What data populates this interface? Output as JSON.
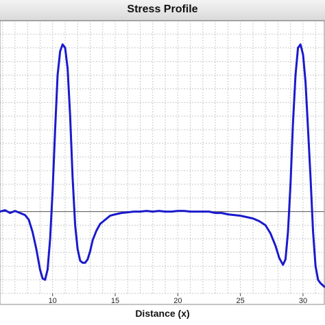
{
  "chart_data": {
    "type": "line",
    "title": "Stress Profile",
    "xlabel": "Distance (x)",
    "ylabel": "",
    "xlim": [
      5.8,
      31.7
    ],
    "ylim": [
      -1.2,
      2.8
    ],
    "x_ticks": [
      10,
      15,
      20,
      25,
      30
    ],
    "grid": true,
    "baseline": 0,
    "colors": {
      "line": "#1a1acc",
      "baseline": "#555555",
      "grid": "#c8c8c8"
    },
    "series": [
      {
        "x": [
          5.8,
          6.2,
          6.6,
          7.0,
          7.4,
          7.8,
          8.1,
          8.4,
          8.7,
          9.0,
          9.2,
          9.4,
          9.6,
          9.8,
          10.0,
          10.2,
          10.4,
          10.6,
          10.8,
          11.0,
          11.2,
          11.4,
          11.6,
          11.8,
          12.0,
          12.2,
          12.4,
          12.6,
          12.8,
          13.0,
          13.2,
          13.5,
          13.8,
          14.2,
          14.6,
          15.0,
          15.5,
          16.0,
          16.5,
          17.0,
          17.5,
          18.0,
          18.5,
          19.0,
          19.5,
          20.0,
          20.5,
          21.0,
          21.5,
          22.0,
          22.5,
          23.0,
          23.5,
          24.0,
          24.5,
          25.0,
          25.5,
          26.0,
          26.5,
          27.0,
          27.4,
          27.8,
          28.1,
          28.4,
          28.6,
          28.8,
          29.0,
          29.2,
          29.4,
          29.6,
          29.8,
          30.0,
          30.2,
          30.4,
          30.6,
          30.8,
          31.0,
          31.2,
          31.4,
          31.7
        ],
        "y": [
          0.0,
          0.02,
          -0.02,
          0.01,
          -0.02,
          -0.05,
          -0.12,
          -0.3,
          -0.55,
          -0.85,
          -0.98,
          -1.0,
          -0.85,
          -0.4,
          0.3,
          1.2,
          2.0,
          2.35,
          2.45,
          2.4,
          2.1,
          1.4,
          0.5,
          -0.2,
          -0.55,
          -0.72,
          -0.75,
          -0.75,
          -0.7,
          -0.58,
          -0.42,
          -0.28,
          -0.18,
          -0.12,
          -0.06,
          -0.04,
          -0.02,
          -0.01,
          0.0,
          0.0,
          0.01,
          0.0,
          0.01,
          0.0,
          0.0,
          0.01,
          0.01,
          0.0,
          0.0,
          0.0,
          0.0,
          -0.02,
          -0.02,
          -0.04,
          -0.05,
          -0.06,
          -0.08,
          -0.1,
          -0.14,
          -0.2,
          -0.32,
          -0.5,
          -0.68,
          -0.78,
          -0.7,
          -0.3,
          0.4,
          1.3,
          2.0,
          2.4,
          2.45,
          2.3,
          1.9,
          1.2,
          0.5,
          -0.3,
          -0.8,
          -1.0,
          -1.05,
          -1.1
        ]
      }
    ]
  }
}
